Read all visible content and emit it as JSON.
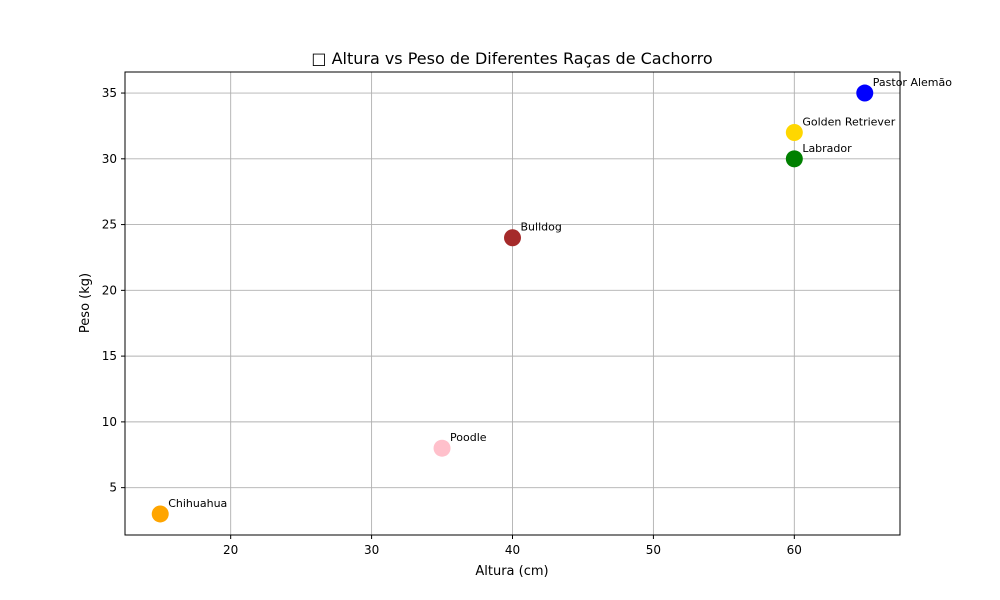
{
  "chart_data": {
    "type": "scatter",
    "title": "□ Altura vs Peso de Diferentes Raças de Cachorro",
    "xlabel": "Altura (cm)",
    "ylabel": "Peso (kg)",
    "xlim": [
      12.5,
      67.5
    ],
    "ylim": [
      1.4,
      36.6
    ],
    "xticks": [
      20,
      30,
      40,
      50,
      60
    ],
    "yticks": [
      5,
      10,
      15,
      20,
      25,
      30,
      35
    ],
    "grid": true,
    "points": [
      {
        "label": "Chihuahua",
        "x": 15,
        "y": 3,
        "color": "#ffa500"
      },
      {
        "label": "Poodle",
        "x": 35,
        "y": 8,
        "color": "#ffc0cb"
      },
      {
        "label": "Bulldog",
        "x": 40,
        "y": 24,
        "color": "#a52a2a"
      },
      {
        "label": "Labrador",
        "x": 60,
        "y": 30,
        "color": "#008000"
      },
      {
        "label": "Golden Retriever",
        "x": 60,
        "y": 32,
        "color": "#ffd700"
      },
      {
        "label": "Pastor Alemão",
        "x": 65,
        "y": 35,
        "color": "#0000ff"
      }
    ]
  }
}
